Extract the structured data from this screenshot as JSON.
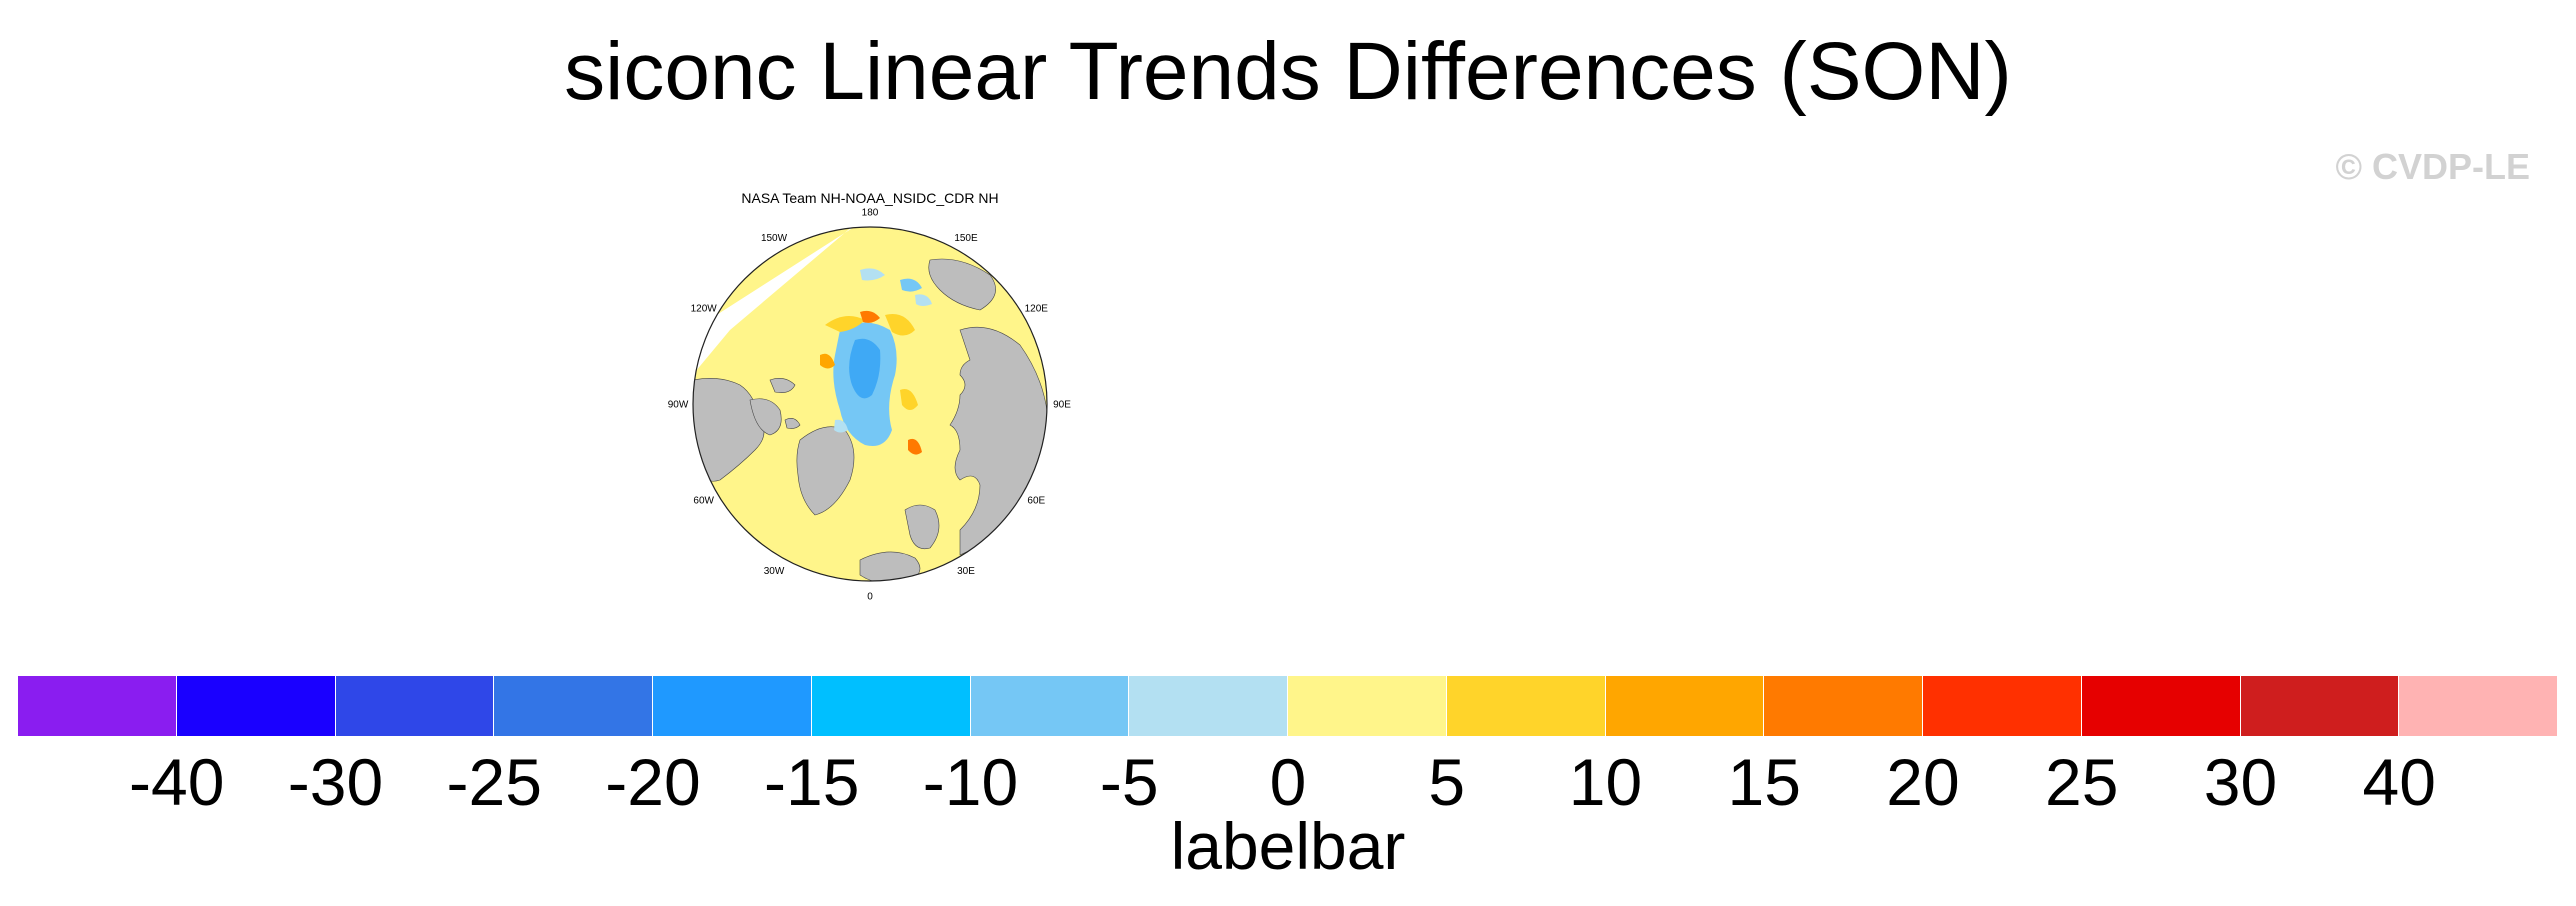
{
  "title": "siconc Linear Trends Differences (SON)",
  "watermark": "© CVDP-LE",
  "panel": {
    "title": "NASA Team NH-NOAA_NSIDC_CDR NH",
    "lon_labels": [
      {
        "text": "180",
        "lon": 180
      },
      {
        "text": "150E",
        "lon": 150
      },
      {
        "text": "120E",
        "lon": 120
      },
      {
        "text": "90E",
        "lon": 90
      },
      {
        "text": "60E",
        "lon": 60
      },
      {
        "text": "30E",
        "lon": 30
      },
      {
        "text": "0",
        "lon": 0
      },
      {
        "text": "30W",
        "lon": -30
      },
      {
        "text": "60W",
        "lon": -60
      },
      {
        "text": "90W",
        "lon": -90
      },
      {
        "text": "120W",
        "lon": -120
      },
      {
        "text": "150W",
        "lon": -150
      }
    ],
    "colors": {
      "land": "#bdbdbd",
      "ocean_zero": "#fff58a",
      "no_data": "#ffffff"
    }
  },
  "labelbar": {
    "title": "labelbar",
    "ticks": [
      "-40",
      "-30",
      "-25",
      "-20",
      "-15",
      "-10",
      "-5",
      "0",
      "5",
      "10",
      "15",
      "20",
      "25",
      "30",
      "40"
    ],
    "colors": [
      "#8a1df0",
      "#1a00ff",
      "#2f47e8",
      "#3375e6",
      "#1f99ff",
      "#00bfff",
      "#75c7f5",
      "#b3e0f2",
      "#fff58a",
      "#ffd42a",
      "#ffa600",
      "#ff7a00",
      "#ff3000",
      "#e60000",
      "#cf1e1e",
      "#ffb3b3"
    ]
  }
}
